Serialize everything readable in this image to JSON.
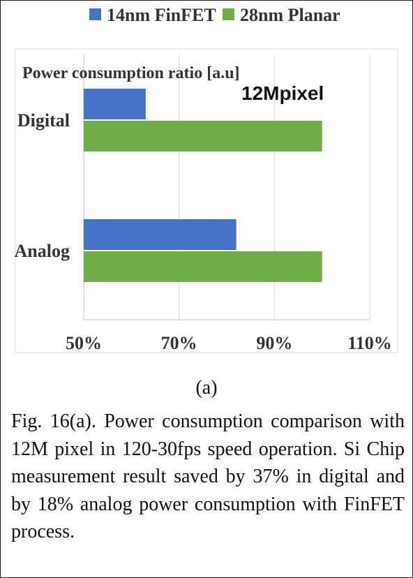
{
  "chart_data": {
    "type": "bar",
    "orientation": "horizontal",
    "categories": [
      "Digital",
      "Analog"
    ],
    "series": [
      {
        "name": "14nm FinFET",
        "color": "#4472C4",
        "values": [
          63,
          82
        ]
      },
      {
        "name": "28nm Planar",
        "color": "#70AD47",
        "values": [
          100,
          100
        ]
      }
    ],
    "ylabel": "Power consumption ratio [a.u]",
    "annotation": "12Mpixel",
    "xlim": [
      50,
      110
    ],
    "xticks": [
      50,
      70,
      90,
      110
    ],
    "xtick_labels": [
      "50%",
      "70%",
      "90%",
      "110%"
    ],
    "grid": true,
    "legend_position": "top"
  },
  "subfigure_label": "(a)",
  "caption": "Fig. 16(a). Power consumption comparison with 12M pixel in 120-30fps speed operation. Si Chip measurement result saved by 37% in digital and by 18% analog power consumption with FinFET process."
}
